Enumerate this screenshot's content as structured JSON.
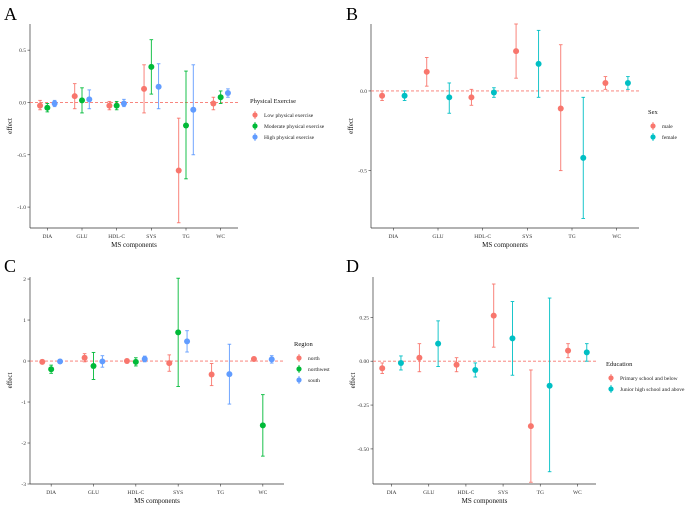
{
  "chart_data": [
    {
      "panel": "A",
      "type": "scatter",
      "subtype": "point-range",
      "categories": [
        "DIA",
        "GLU",
        "HDL-C",
        "SYS",
        "TG",
        "WC"
      ],
      "xlabel": "MS components",
      "ylabel": "effect",
      "ylim": [
        -1.2,
        0.75
      ],
      "yticks": [
        -1.0,
        -0.5,
        0.0,
        0.5
      ],
      "ytick_labels": [
        "-1.0",
        "-0.5",
        "0.0",
        "0.5"
      ],
      "reference_line": 0,
      "legend_title": "Physical Exercise",
      "legend_position": "right",
      "series": [
        {
          "name": "Low physical exercise",
          "color": "#F8766D",
          "values": [
            -0.03,
            0.06,
            -0.03,
            0.13,
            -0.65,
            -0.01
          ],
          "lower": [
            -0.07,
            -0.06,
            -0.07,
            -0.1,
            -1.15,
            -0.07
          ],
          "upper": [
            0.02,
            0.18,
            0.01,
            0.36,
            -0.15,
            0.05
          ]
        },
        {
          "name": "Moderate physical exercise",
          "color": "#00BA38",
          "values": [
            -0.05,
            0.02,
            -0.03,
            0.34,
            -0.22,
            0.05
          ],
          "lower": [
            -0.09,
            -0.1,
            -0.07,
            0.08,
            -0.73,
            -0.01
          ],
          "upper": [
            -0.01,
            0.14,
            0.01,
            0.6,
            0.3,
            0.11
          ]
        },
        {
          "name": "High physical exercise",
          "color": "#619CFF",
          "values": [
            -0.01,
            0.03,
            -0.01,
            0.15,
            -0.07,
            0.09
          ],
          "lower": [
            -0.04,
            -0.06,
            -0.04,
            -0.06,
            -0.5,
            0.05
          ],
          "upper": [
            0.02,
            0.12,
            0.03,
            0.37,
            0.36,
            0.13
          ]
        }
      ]
    },
    {
      "panel": "B",
      "type": "scatter",
      "subtype": "point-range",
      "categories": [
        "DIA",
        "GLU",
        "HDL-C",
        "SYS",
        "TG",
        "WC"
      ],
      "xlabel": "MS components",
      "ylabel": "effect",
      "ylim": [
        -0.86,
        0.42
      ],
      "yticks": [
        -0.5,
        0.0
      ],
      "ytick_labels": [
        "-0.5",
        "0.0"
      ],
      "reference_line": 0,
      "legend_title": "Sex",
      "legend_position": "right",
      "series": [
        {
          "name": "male",
          "color": "#F8766D",
          "values": [
            -0.03,
            0.12,
            -0.04,
            0.25,
            -0.11,
            0.05
          ],
          "lower": [
            -0.06,
            0.03,
            -0.09,
            0.08,
            -0.5,
            0.01
          ],
          "upper": [
            0.0,
            0.21,
            0.01,
            0.42,
            0.29,
            0.09
          ]
        },
        {
          "name": "female",
          "color": "#00BFC4",
          "values": [
            -0.03,
            -0.04,
            -0.01,
            0.17,
            -0.42,
            0.05
          ],
          "lower": [
            -0.06,
            -0.14,
            -0.04,
            -0.04,
            -0.8,
            0.01
          ],
          "upper": [
            0.0,
            0.05,
            0.02,
            0.38,
            -0.04,
            0.09
          ]
        }
      ]
    },
    {
      "panel": "C",
      "type": "scatter",
      "subtype": "point-range",
      "categories": [
        "DIA",
        "GLU",
        "HDL-C",
        "SYS",
        "TG",
        "WC"
      ],
      "xlabel": "MS components",
      "ylabel": "effect",
      "ylim": [
        -3.0,
        2.05
      ],
      "yticks": [
        -3,
        -2,
        -1,
        0,
        1,
        2
      ],
      "ytick_labels": [
        "-3",
        "-2",
        "-1",
        "0",
        "1",
        "2"
      ],
      "reference_line": 0,
      "legend_title": "Region",
      "legend_position": "right",
      "series": [
        {
          "name": "north",
          "color": "#F8766D",
          "values": [
            -0.02,
            0.08,
            0.0,
            -0.05,
            -0.33,
            0.05
          ],
          "lower": [
            -0.07,
            -0.02,
            -0.05,
            -0.25,
            -0.6,
            0.0
          ],
          "upper": [
            0.03,
            0.18,
            0.05,
            0.15,
            -0.06,
            0.1
          ]
        },
        {
          "name": "northwest",
          "color": "#00BA38",
          "values": [
            -0.2,
            -0.12,
            -0.02,
            0.7,
            null,
            -1.57
          ],
          "lower": [
            -0.3,
            -0.45,
            -0.12,
            -0.62,
            null,
            -2.32
          ],
          "upper": [
            -0.1,
            0.21,
            0.08,
            2.02,
            null,
            -0.82
          ]
        },
        {
          "name": "south",
          "color": "#619CFF",
          "values": [
            -0.01,
            -0.01,
            0.05,
            0.48,
            -0.32,
            0.04
          ],
          "lower": [
            -0.06,
            -0.15,
            -0.02,
            0.22,
            -1.05,
            -0.05
          ],
          "upper": [
            0.04,
            0.13,
            0.12,
            0.74,
            0.41,
            0.13
          ]
        }
      ]
    },
    {
      "panel": "D",
      "type": "scatter",
      "subtype": "point-range",
      "categories": [
        "DIA",
        "GLU",
        "HDL-C",
        "SYS",
        "TG",
        "WC"
      ],
      "xlabel": "MS components",
      "ylabel": "effect",
      "ylim": [
        -0.7,
        0.48
      ],
      "yticks": [
        -0.5,
        -0.25,
        0.0,
        0.25
      ],
      "ytick_labels": [
        "-0.50",
        "-0.25",
        "0.00",
        "0.25"
      ],
      "reference_line": 0,
      "legend_title": "Education",
      "legend_position": "right",
      "series": [
        {
          "name": "Primary school and below",
          "color": "#F8766D",
          "values": [
            -0.04,
            0.02,
            -0.02,
            0.26,
            -0.37,
            0.06
          ],
          "lower": [
            -0.07,
            -0.06,
            -0.06,
            0.08,
            -0.69,
            0.02
          ],
          "upper": [
            -0.01,
            0.1,
            0.02,
            0.44,
            -0.05,
            0.1
          ]
        },
        {
          "name": "Junior high school and above",
          "color": "#00BFC4",
          "values": [
            -0.01,
            0.1,
            -0.05,
            0.13,
            -0.14,
            0.05
          ],
          "lower": [
            -0.05,
            -0.03,
            -0.09,
            -0.08,
            -0.63,
            0.0
          ],
          "upper": [
            0.03,
            0.23,
            -0.01,
            0.34,
            0.36,
            0.1
          ]
        }
      ]
    }
  ]
}
